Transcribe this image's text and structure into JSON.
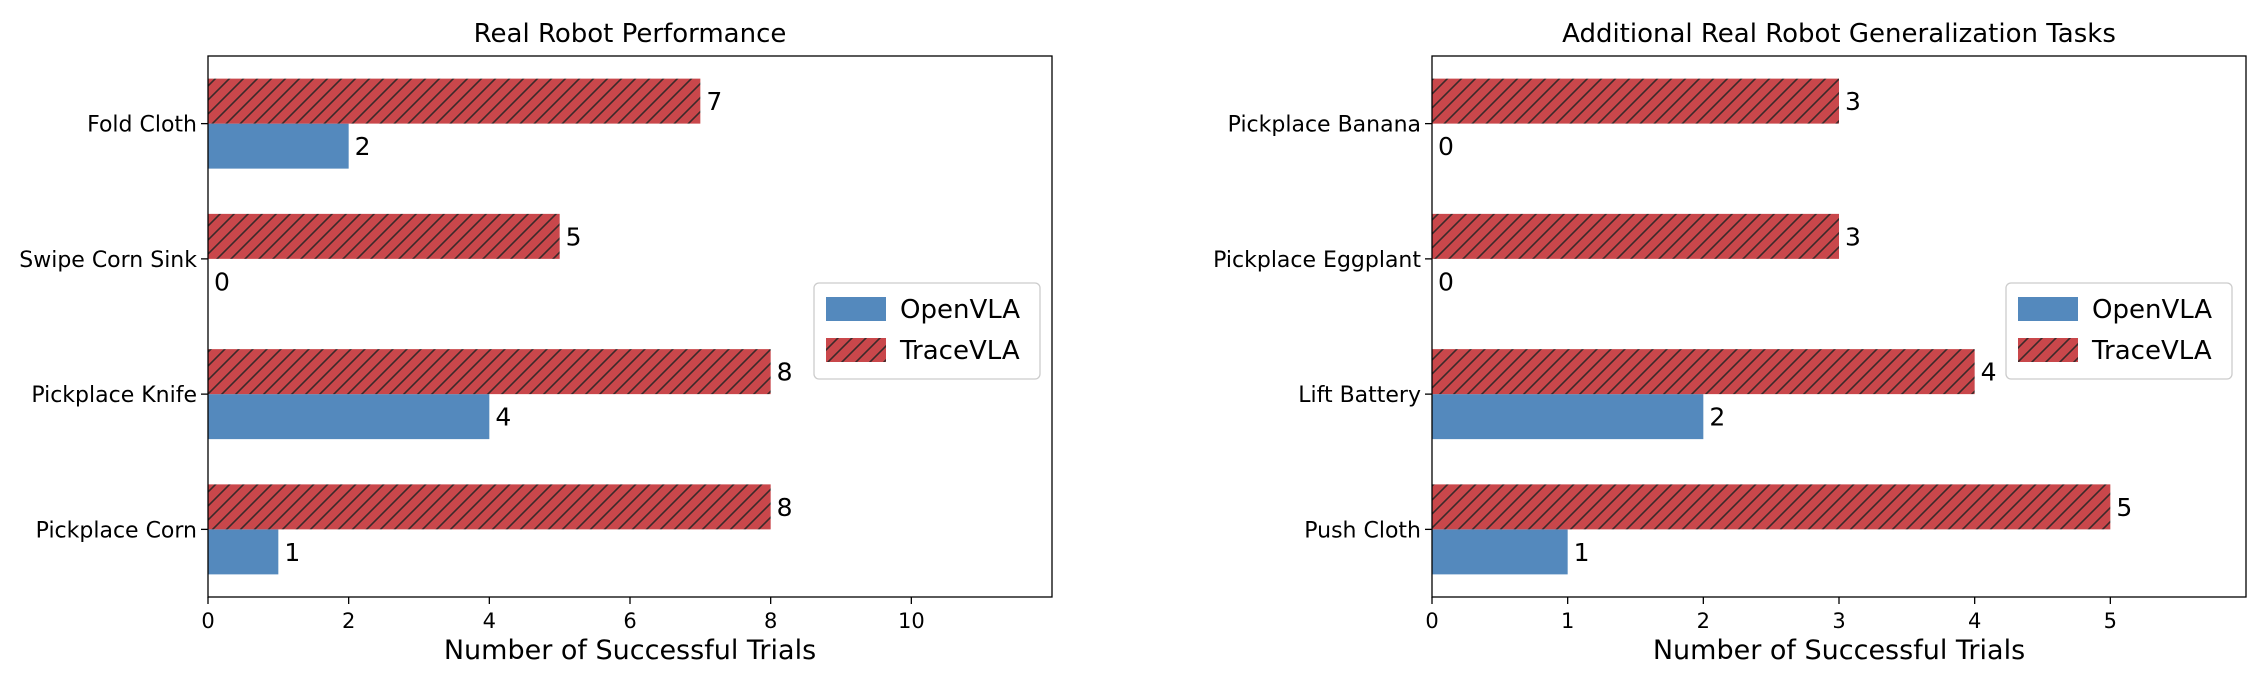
{
  "chart_data": [
    {
      "type": "bar",
      "orientation": "horizontal",
      "title": "Real Robot Performance",
      "xlabel": "Number of Successful Trials",
      "ylabel": "",
      "categories": [
        "Fold Cloth",
        "Swipe Corn Sink",
        "Pickplace Knife",
        "Pickplace Corn"
      ],
      "series": [
        {
          "name": "OpenVLA",
          "values": [
            2,
            0,
            4,
            1
          ],
          "color": "#5489BD",
          "pattern": "solid"
        },
        {
          "name": "TraceVLA",
          "values": [
            7,
            5,
            8,
            8
          ],
          "color": "#C9474B",
          "pattern": "hatch"
        }
      ],
      "xlim": [
        0,
        12
      ],
      "xticks": [
        0,
        2,
        4,
        6,
        8,
        10
      ],
      "grid": false,
      "legend": "center-right"
    },
    {
      "type": "bar",
      "orientation": "horizontal",
      "title": "Additional Real Robot Generalization Tasks",
      "xlabel": "Number of Successful Trials",
      "ylabel": "",
      "categories": [
        "Pickplace Banana",
        "Pickplace Eggplant",
        "Lift Battery",
        "Push Cloth"
      ],
      "series": [
        {
          "name": "OpenVLA",
          "values": [
            0,
            0,
            2,
            1
          ],
          "color": "#5489BD",
          "pattern": "solid"
        },
        {
          "name": "TraceVLA",
          "values": [
            3,
            3,
            4,
            5
          ],
          "color": "#C9474B",
          "pattern": "hatch"
        }
      ],
      "xlim": [
        0,
        6
      ],
      "xticks": [
        0,
        1,
        2,
        3,
        4,
        5
      ],
      "grid": false,
      "legend": "center-right"
    }
  ]
}
